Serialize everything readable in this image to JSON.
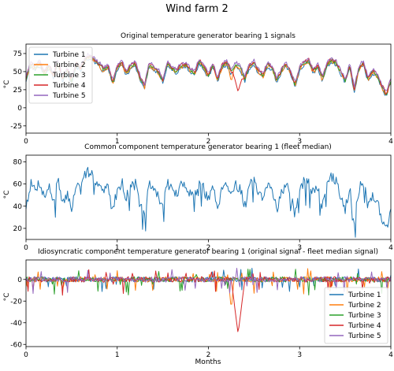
{
  "figure_title": "Wind farm 2",
  "x_axis_label": "Months",
  "colors": {
    "Turbine 1": "#1f77b4",
    "Turbine 2": "#ff7f0e",
    "Turbine 3": "#2ca02c",
    "Turbine 4": "#d62728",
    "Turbine 5": "#9467bd"
  },
  "chart_data": [
    {
      "type": "line",
      "title": "Original temperature generator bearing 1 signals",
      "xlabel": "",
      "ylabel": "°C",
      "xlim": [
        0,
        4
      ],
      "ylim": [
        -35,
        88
      ],
      "xticks": [
        0,
        1,
        2,
        3,
        4
      ],
      "yticks": [
        -25,
        0,
        25,
        50,
        75
      ],
      "grid": false,
      "legend": "top-left",
      "series": [
        {
          "name": "Turbine 1",
          "color": "#1f77b4"
        },
        {
          "name": "Turbine 2",
          "color": "#ff7f0e"
        },
        {
          "name": "Turbine 3",
          "color": "#2ca02c"
        },
        {
          "name": "Turbine 4",
          "color": "#d62728"
        },
        {
          "name": "Turbine 5",
          "color": "#9467bd"
        }
      ],
      "baseline_profile": {
        "x": [
          0,
          0.05,
          0.1,
          0.15,
          0.2,
          0.25,
          0.3,
          0.35,
          0.4,
          0.45,
          0.5,
          0.55,
          0.6,
          0.65,
          0.7,
          0.75,
          0.8,
          0.85,
          0.9,
          0.95,
          1.0,
          1.05,
          1.1,
          1.15,
          1.2,
          1.25,
          1.3,
          1.35,
          1.4,
          1.45,
          1.5,
          1.55,
          1.6,
          1.65,
          1.7,
          1.75,
          1.8,
          1.85,
          1.9,
          1.95,
          2.0,
          2.05,
          2.1,
          2.15,
          2.2,
          2.25,
          2.3,
          2.35,
          2.4,
          2.45,
          2.5,
          2.55,
          2.6,
          2.65,
          2.7,
          2.75,
          2.8,
          2.85,
          2.9,
          2.95,
          3.0,
          3.05,
          3.1,
          3.15,
          3.2,
          3.25,
          3.3,
          3.35,
          3.4,
          3.45,
          3.5,
          3.55,
          3.6,
          3.65,
          3.7,
          3.75,
          3.8,
          3.85,
          3.9,
          3.95,
          4.0
        ],
        "y": [
          40,
          60,
          55,
          62,
          48,
          58,
          45,
          64,
          40,
          52,
          38,
          60,
          55,
          68,
          72,
          65,
          60,
          52,
          58,
          35,
          55,
          62,
          48,
          58,
          60,
          42,
          30,
          60,
          55,
          50,
          38,
          62,
          55,
          50,
          58,
          60,
          52,
          48,
          65,
          55,
          45,
          60,
          38,
          58,
          62,
          50,
          60,
          55,
          40,
          58,
          62,
          50,
          45,
          60,
          55,
          38,
          52,
          60,
          50,
          32,
          55,
          62,
          65,
          50,
          58,
          40,
          60,
          66,
          62,
          50,
          38,
          58,
          25,
          55,
          62,
          40,
          50,
          45,
          30,
          18,
          38
        ]
      },
      "events": [
        {
          "series": "Turbine 2",
          "x_start": 2.22,
          "x_end": 2.28,
          "y_min": 37
        },
        {
          "series": "Turbine 4",
          "x_start": 2.25,
          "x_end": 2.4,
          "y_min": 22
        }
      ]
    },
    {
      "type": "line",
      "title": "Common component temperature generator bearing 1 (fleet median)",
      "xlabel": "",
      "ylabel": "°C",
      "xlim": [
        0,
        4
      ],
      "ylim": [
        10,
        86
      ],
      "xticks": [
        0,
        1,
        2,
        3,
        4
      ],
      "yticks": [
        20,
        40,
        60,
        80
      ],
      "grid": false,
      "series": [
        {
          "name": "",
          "color": "#1f77b4",
          "x": [
            0,
            0.05,
            0.1,
            0.15,
            0.2,
            0.25,
            0.3,
            0.35,
            0.4,
            0.45,
            0.5,
            0.55,
            0.6,
            0.65,
            0.7,
            0.75,
            0.8,
            0.85,
            0.9,
            0.95,
            1.0,
            1.05,
            1.1,
            1.15,
            1.2,
            1.25,
            1.3,
            1.35,
            1.4,
            1.45,
            1.5,
            1.55,
            1.6,
            1.65,
            1.7,
            1.75,
            1.8,
            1.85,
            1.9,
            1.95,
            2.0,
            2.05,
            2.1,
            2.15,
            2.2,
            2.25,
            2.3,
            2.35,
            2.4,
            2.45,
            2.5,
            2.55,
            2.6,
            2.65,
            2.7,
            2.75,
            2.8,
            2.85,
            2.9,
            2.95,
            3.0,
            3.05,
            3.1,
            3.15,
            3.2,
            3.25,
            3.3,
            3.35,
            3.4,
            3.45,
            3.5,
            3.55,
            3.6,
            3.65,
            3.7,
            3.75,
            3.8,
            3.85,
            3.9,
            3.95,
            4.0
          ],
          "y": [
            40,
            60,
            55,
            62,
            48,
            58,
            45,
            64,
            40,
            52,
            38,
            60,
            55,
            68,
            72,
            65,
            60,
            52,
            58,
            35,
            55,
            62,
            48,
            58,
            60,
            42,
            30,
            60,
            55,
            50,
            38,
            62,
            55,
            50,
            58,
            60,
            52,
            48,
            65,
            55,
            45,
            60,
            38,
            58,
            62,
            50,
            60,
            55,
            40,
            58,
            62,
            50,
            45,
            60,
            55,
            38,
            52,
            60,
            50,
            32,
            55,
            62,
            65,
            50,
            58,
            40,
            60,
            66,
            62,
            50,
            38,
            58,
            25,
            55,
            62,
            40,
            50,
            45,
            30,
            18,
            38
          ]
        }
      ]
    },
    {
      "type": "line",
      "title": "Idiosyncratic component temperature generator bearing 1 (original signal - fleet median signal)",
      "xlabel": "Months",
      "ylabel": "°C",
      "xlim": [
        0,
        4
      ],
      "ylim": [
        -62,
        18
      ],
      "xticks": [
        0,
        1,
        2,
        3,
        4
      ],
      "yticks": [
        -60,
        -40,
        -20,
        0
      ],
      "grid": false,
      "legend": "bottom-right",
      "series": [
        {
          "name": "Turbine 1",
          "color": "#1f77b4"
        },
        {
          "name": "Turbine 2",
          "color": "#ff7f0e"
        },
        {
          "name": "Turbine 3",
          "color": "#2ca02c"
        },
        {
          "name": "Turbine 4",
          "color": "#d62728"
        },
        {
          "name": "Turbine 5",
          "color": "#9467bd"
        }
      ],
      "events": [
        {
          "series": "Turbine 2",
          "x_start": 2.22,
          "x_end": 2.28,
          "y_min": -28
        },
        {
          "series": "Turbine 4",
          "x_start": 2.25,
          "x_end": 2.4,
          "y_min": -50
        }
      ]
    }
  ]
}
